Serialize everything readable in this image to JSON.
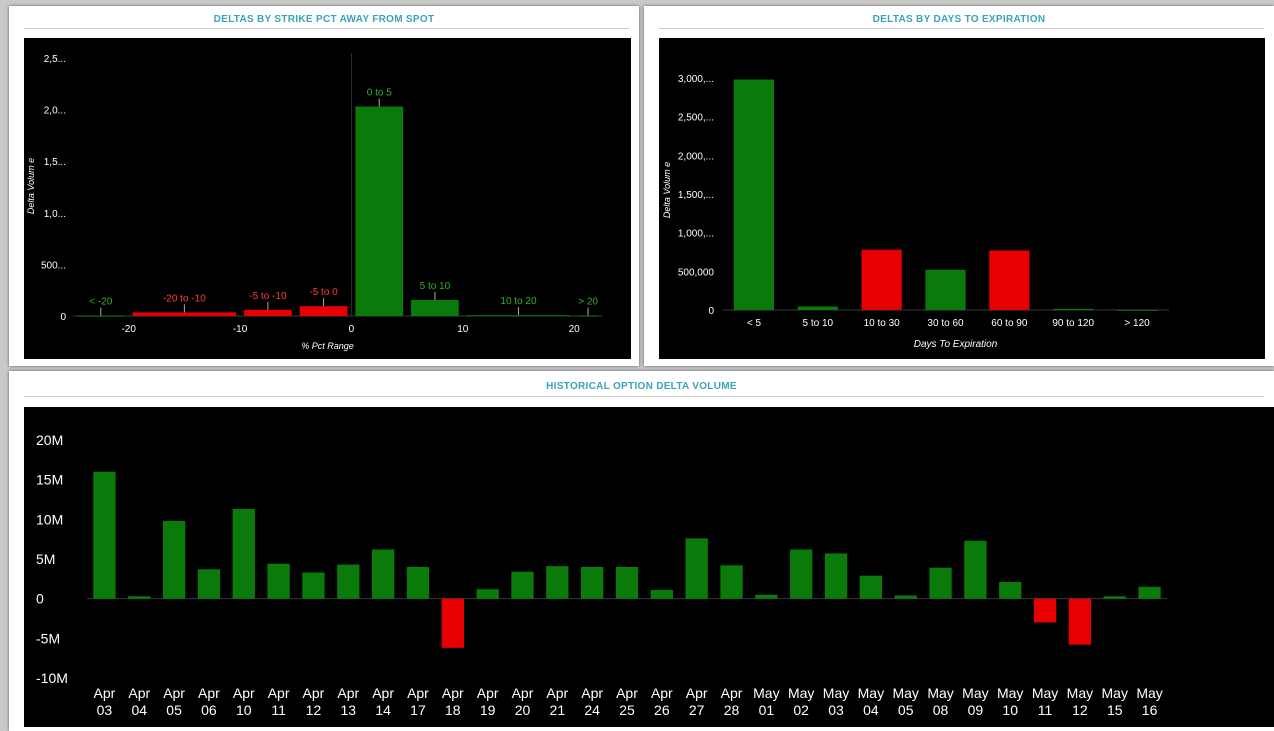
{
  "panels": {
    "strike": {
      "title": "DELTAS BY STRIKE PCT AWAY FROM SPOT"
    },
    "days": {
      "title": "DELTAS BY DAYS TO EXPIRATION"
    },
    "history": {
      "title": "HISTORICAL OPTION DELTA VOLUME"
    }
  },
  "colors": {
    "positive": "#0a7a0a",
    "negative": "#e80000",
    "background": "#000000",
    "title": "#3aa3b8"
  },
  "chart_data": [
    {
      "type": "bar",
      "title": "DELTAS BY STRIKE PCT AWAY FROM SPOT",
      "xlabel": "% Pct Range",
      "ylabel": "Delta Volum e",
      "ylim": [
        0,
        2500
      ],
      "xlim": [
        -25,
        22.5
      ],
      "ytick_values": [
        0,
        500,
        1000,
        1500,
        2000,
        2500
      ],
      "yticks": [
        "0",
        "500...",
        "1,0...",
        "1,5...",
        "2,0...",
        "2,5..."
      ],
      "xtick_values": [
        -20,
        -10,
        0,
        10,
        20
      ],
      "xticks": [
        "-20",
        "-10",
        "0",
        "10",
        "20"
      ],
      "bars": [
        {
          "label": "< -20",
          "x0": -25,
          "x1": -20,
          "value": 3,
          "color": "positive"
        },
        {
          "label": "-20 to -10",
          "x0": -20,
          "x1": -10,
          "value": 35,
          "color": "negative"
        },
        {
          "label": "-5 to -10",
          "x0": -10,
          "x1": -5,
          "value": 60,
          "color": "negative"
        },
        {
          "label": "-5 to 0",
          "x0": -5,
          "x1": 0,
          "value": 95,
          "color": "negative"
        },
        {
          "label": "0 to 5",
          "x0": 0,
          "x1": 5,
          "value": 2030,
          "color": "positive"
        },
        {
          "label": "5 to 10",
          "x0": 5,
          "x1": 10,
          "value": 155,
          "color": "positive"
        },
        {
          "label": "10 to 20",
          "x0": 10,
          "x1": 20,
          "value": 8,
          "color": "positive"
        },
        {
          "label": "> 20",
          "x0": 20,
          "x1": 22.5,
          "value": 4,
          "color": "positive"
        }
      ]
    },
    {
      "type": "bar",
      "title": "DELTAS BY DAYS TO EXPIRATION",
      "xlabel": "Days To Expiration",
      "ylabel": "Delta Volum e",
      "ylim": [
        0,
        3000000
      ],
      "ytick_values": [
        0,
        500000,
        1000000,
        1500000,
        2000000,
        2500000,
        3000000
      ],
      "yticks": [
        "0",
        "500,000",
        "1,000,...",
        "1,500,...",
        "2,000,...",
        "2,500,...",
        "3,000,..."
      ],
      "categories": [
        "< 5",
        "5 to 10",
        "10 to 30",
        "30 to 60",
        "60 to 90",
        "90 to 120",
        "> 120"
      ],
      "values": [
        2980000,
        45000,
        780000,
        520000,
        770000,
        15000,
        2000
      ],
      "bar_colors": [
        "positive",
        "positive",
        "negative",
        "positive",
        "negative",
        "positive",
        "positive"
      ]
    },
    {
      "type": "bar",
      "title": "HISTORICAL OPTION DELTA VOLUME",
      "ylim": [
        -10000000,
        20000000
      ],
      "ytick_values": [
        -10000000,
        -5000000,
        0,
        5000000,
        10000000,
        15000000,
        20000000
      ],
      "yticks": [
        "-10M",
        "-5M",
        "0",
        "5M",
        "10M",
        "15M",
        "20M"
      ],
      "categories": [
        [
          "Apr",
          "03"
        ],
        [
          "Apr",
          "04"
        ],
        [
          "Apr",
          "05"
        ],
        [
          "Apr",
          "06"
        ],
        [
          "Apr",
          "10"
        ],
        [
          "Apr",
          "11"
        ],
        [
          "Apr",
          "12"
        ],
        [
          "Apr",
          "13"
        ],
        [
          "Apr",
          "14"
        ],
        [
          "Apr",
          "17"
        ],
        [
          "Apr",
          "18"
        ],
        [
          "Apr",
          "19"
        ],
        [
          "Apr",
          "20"
        ],
        [
          "Apr",
          "21"
        ],
        [
          "Apr",
          "24"
        ],
        [
          "Apr",
          "25"
        ],
        [
          "Apr",
          "26"
        ],
        [
          "Apr",
          "27"
        ],
        [
          "Apr",
          "28"
        ],
        [
          "May",
          "01"
        ],
        [
          "May",
          "02"
        ],
        [
          "May",
          "03"
        ],
        [
          "May",
          "04"
        ],
        [
          "May",
          "05"
        ],
        [
          "May",
          "08"
        ],
        [
          "May",
          "09"
        ],
        [
          "May",
          "10"
        ],
        [
          "May",
          "11"
        ],
        [
          "May",
          "12"
        ],
        [
          "May",
          "15"
        ],
        [
          "May",
          "16"
        ]
      ],
      "values": [
        16000000,
        300000,
        9800000,
        3700000,
        11300000,
        4400000,
        3300000,
        4300000,
        6200000,
        4000000,
        -6200000,
        1200000,
        3400000,
        4100000,
        4000000,
        4000000,
        1100000,
        7600000,
        4200000,
        500000,
        6200000,
        5700000,
        2900000,
        400000,
        3900000,
        7300000,
        2100000,
        -3000000,
        -5800000,
        300000,
        1500000
      ]
    }
  ]
}
